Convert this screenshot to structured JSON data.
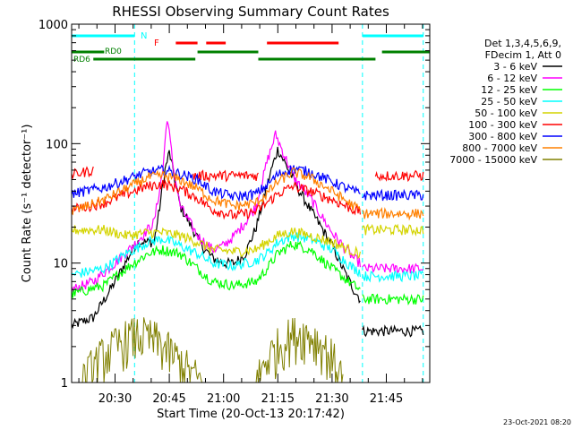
{
  "chart_data": {
    "type": "line",
    "title": "RHESSI Observing Summary Count Rates",
    "xlabel": "Start Time (20-Oct-13 20:17:42)",
    "ylabel": "Count Rate (s⁻¹ detector⁻¹)",
    "yscale": "log",
    "xlim": [
      20.3,
      21.95
    ],
    "ylim": [
      1,
      1000
    ],
    "x_ticks": [
      {
        "t": 20.5,
        "label": "20:30"
      },
      {
        "t": 20.75,
        "label": "20:45"
      },
      {
        "t": 21.0,
        "label": "21:00"
      },
      {
        "t": 21.25,
        "label": "21:15"
      },
      {
        "t": 21.5,
        "label": "21:30"
      },
      {
        "t": 21.75,
        "label": "21:45"
      }
    ],
    "y_ticks": [
      {
        "v": 1,
        "label": "1"
      },
      {
        "v": 10,
        "label": "10"
      },
      {
        "v": 100,
        "label": "100"
      },
      {
        "v": 1000,
        "label": "1000"
      }
    ],
    "legend_header": [
      "Det 1,3,4,5,6,9,",
      "FDecim 1, Att 0"
    ],
    "legend": [
      {
        "label": "3 - 6 keV",
        "color": "#000000"
      },
      {
        "label": "6 - 12 keV",
        "color": "#ff00ff"
      },
      {
        "label": "12 - 25 keV",
        "color": "#00ff00"
      },
      {
        "label": "25 - 50 keV",
        "color": "#00ffff"
      },
      {
        "label": "50 - 100 keV",
        "color": "#d4d400"
      },
      {
        "label": "100 - 300 keV",
        "color": "#ff0000"
      },
      {
        "label": "300 - 800 keV",
        "color": "#0000ff"
      },
      {
        "label": "800 - 7000 keV",
        "color": "#ff8000"
      },
      {
        "label": "7000 - 15000 keV",
        "color": "#808000"
      }
    ],
    "vertical_markers_t": [
      20.59,
      21.64,
      21.92
    ],
    "flags": [
      {
        "name": "N",
        "color": "#00ffff",
        "segments": [
          [
            20.3,
            20.59
          ],
          [
            21.64,
            21.92
          ]
        ]
      },
      {
        "name": "F",
        "color": "#ff0000",
        "segments": [
          [
            20.78,
            20.88
          ],
          [
            20.92,
            21.01
          ],
          [
            21.2,
            21.53
          ]
        ]
      },
      {
        "name": "RD0",
        "color": "#008000",
        "segments": [
          [
            20.3,
            20.45
          ],
          [
            20.88,
            21.16
          ],
          [
            21.73,
            21.95
          ]
        ]
      },
      {
        "name": "RD6",
        "color": "#008000",
        "segments": [
          [
            20.4,
            20.87
          ],
          [
            21.16,
            21.7
          ]
        ]
      }
    ],
    "series": [
      {
        "name": "3 - 6 keV",
        "color": "#000000",
        "t": [
          20.3,
          20.4,
          20.5,
          20.6,
          20.68,
          20.7,
          20.73,
          20.75,
          20.8,
          20.9,
          20.95,
          21.0,
          21.05,
          21.1,
          21.15,
          21.22,
          21.25,
          21.3,
          21.35,
          21.4,
          21.45,
          21.5,
          21.55,
          21.6,
          21.63
        ],
        "v": [
          3,
          3.5,
          7,
          15,
          15,
          25,
          60,
          85,
          30,
          14,
          11,
          10,
          10,
          12,
          20,
          60,
          90,
          60,
          40,
          28,
          20,
          14,
          9,
          6,
          5
        ]
      },
      {
        "name": "3 - 6 keV (post)",
        "color": "#000000",
        "t": [
          21.64,
          21.92
        ],
        "v": [
          2.7,
          2.7
        ]
      },
      {
        "name": "6 - 12 keV",
        "color": "#ff00ff",
        "t": [
          20.3,
          20.4,
          20.5,
          20.6,
          20.68,
          20.72,
          20.74,
          20.77,
          20.8,
          20.88,
          20.95,
          21.0,
          21.05,
          21.1,
          21.15,
          21.2,
          21.24,
          21.28,
          21.33,
          21.4,
          21.45,
          21.5,
          21.55,
          21.6,
          21.63
        ],
        "v": [
          6,
          7,
          10,
          15,
          22,
          60,
          170,
          60,
          30,
          17,
          13,
          14,
          17,
          22,
          30,
          70,
          120,
          80,
          50,
          35,
          25,
          18,
          14,
          11,
          10
        ]
      },
      {
        "name": "6 - 12 keV (post)",
        "color": "#ff00ff",
        "t": [
          21.64,
          21.92
        ],
        "v": [
          9,
          9
        ]
      },
      {
        "name": "12 - 25 keV",
        "color": "#00ff00",
        "t": [
          20.3,
          20.45,
          20.55,
          20.65,
          20.72,
          20.8,
          20.88,
          20.95,
          21.05,
          21.15,
          21.2,
          21.25,
          21.32,
          21.4,
          21.5,
          21.6,
          21.63
        ],
        "v": [
          5.5,
          6.5,
          9,
          12,
          13,
          12,
          9,
          7,
          6.5,
          7,
          9,
          12,
          14.5,
          13,
          9,
          6.5,
          6
        ]
      },
      {
        "name": "12 - 25 keV (post)",
        "color": "#00ff00",
        "t": [
          21.64,
          21.92
        ],
        "v": [
          5,
          5
        ]
      },
      {
        "name": "25 - 50 keV",
        "color": "#00ffff",
        "t": [
          20.3,
          20.45,
          20.55,
          20.65,
          20.72,
          20.8,
          20.88,
          20.95,
          21.05,
          21.15,
          21.2,
          21.25,
          21.32,
          21.4,
          21.5,
          21.6,
          21.63
        ],
        "v": [
          8,
          9,
          12,
          15,
          16,
          14,
          12,
          10,
          9.5,
          10.5,
          12,
          15,
          17,
          16,
          13,
          9,
          8.5
        ]
      },
      {
        "name": "25 - 50 keV (post)",
        "color": "#00ffff",
        "t": [
          21.64,
          21.92
        ],
        "v": [
          7.8,
          7.8
        ]
      },
      {
        "name": "50 - 100 keV",
        "color": "#d4d400",
        "t": [
          20.3,
          20.45,
          20.55,
          20.65,
          20.72,
          20.8,
          20.88,
          20.95,
          21.05,
          21.15,
          21.2,
          21.25,
          21.32,
          21.4,
          21.5,
          21.6,
          21.63
        ],
        "v": [
          19,
          19,
          17,
          18,
          18,
          17,
          15,
          13,
          12.5,
          13,
          15,
          17,
          18.5,
          17,
          15,
          12.5,
          12
        ]
      },
      {
        "name": "50 - 100 keV (post)",
        "color": "#d4d400",
        "t": [
          21.64,
          21.92
        ],
        "v": [
          19,
          19
        ]
      },
      {
        "name": "100 - 300 keV",
        "color": "#ff0000",
        "t": [
          20.3,
          20.45,
          20.55,
          20.65,
          20.72,
          20.8,
          20.88,
          20.95,
          21.05,
          21.15,
          21.2,
          21.25,
          21.32,
          21.4,
          21.5,
          21.6,
          21.63
        ],
        "v": [
          28,
          32,
          38,
          44,
          46,
          42,
          35,
          28,
          25,
          27,
          32,
          38,
          44,
          40,
          34,
          28,
          27
        ]
      },
      {
        "name": "100 - 300 keV (flagged)",
        "color": "#ff0000",
        "t": [
          20.3,
          20.4
        ],
        "v": [
          55,
          60
        ]
      },
      {
        "name": "100 - 300 keV (flagged 2)",
        "color": "#ff0000",
        "t": [
          20.86,
          21.16
        ],
        "v": [
          54,
          54
        ]
      },
      {
        "name": "100 - 300 keV (post)",
        "color": "#ff0000",
        "t": [
          21.7,
          21.92
        ],
        "v": [
          54,
          54
        ]
      },
      {
        "name": "300 - 800 keV",
        "color": "#0000ff",
        "t": [
          20.3,
          20.45,
          20.55,
          20.65,
          20.72,
          20.8,
          20.88,
          20.95,
          21.05,
          21.15,
          21.2,
          21.25,
          21.32,
          21.4,
          21.5,
          21.6,
          21.63
        ],
        "v": [
          38,
          43,
          50,
          58,
          60,
          56,
          50,
          40,
          36,
          38,
          45,
          55,
          62,
          58,
          48,
          40,
          38
        ]
      },
      {
        "name": "300 - 800 keV (post)",
        "color": "#0000ff",
        "t": [
          21.64,
          21.92
        ],
        "v": [
          37,
          37
        ]
      },
      {
        "name": "800 - 7000 keV",
        "color": "#ff8000",
        "t": [
          20.3,
          20.45,
          20.55,
          20.65,
          20.72,
          20.8,
          20.88,
          20.95,
          21.05,
          21.15,
          21.2,
          21.25,
          21.32,
          21.4,
          21.5,
          21.6,
          21.63
        ],
        "v": [
          27,
          34,
          42,
          52,
          54,
          50,
          42,
          34,
          30,
          32,
          38,
          48,
          58,
          52,
          40,
          30,
          28
        ]
      },
      {
        "name": "800 - 7000 keV (post)",
        "color": "#ff8000",
        "t": [
          21.64,
          21.92
        ],
        "v": [
          26,
          26
        ]
      },
      {
        "name": "7000 - 15000 keV",
        "color": "#808000",
        "t": [
          20.35,
          20.4,
          20.45,
          20.5,
          20.55,
          20.6,
          20.65,
          20.7,
          20.75,
          20.8,
          20.85,
          20.9
        ],
        "v": [
          1,
          1.4,
          1.7,
          2,
          2.3,
          2.5,
          2.4,
          2.2,
          1.8,
          1.5,
          1.2,
          1
        ]
      },
      {
        "name": "7000 - 15000 keV (2)",
        "color": "#808000",
        "t": [
          21.15,
          21.2,
          21.25,
          21.3,
          21.35,
          21.4,
          21.45,
          21.5,
          21.55
        ],
        "v": [
          1,
          1.6,
          2.0,
          2.4,
          2.6,
          2.5,
          2.1,
          1.6,
          1.1
        ]
      }
    ]
  },
  "footer": {
    "timestamp": "23-Oct-2021 08:20"
  }
}
